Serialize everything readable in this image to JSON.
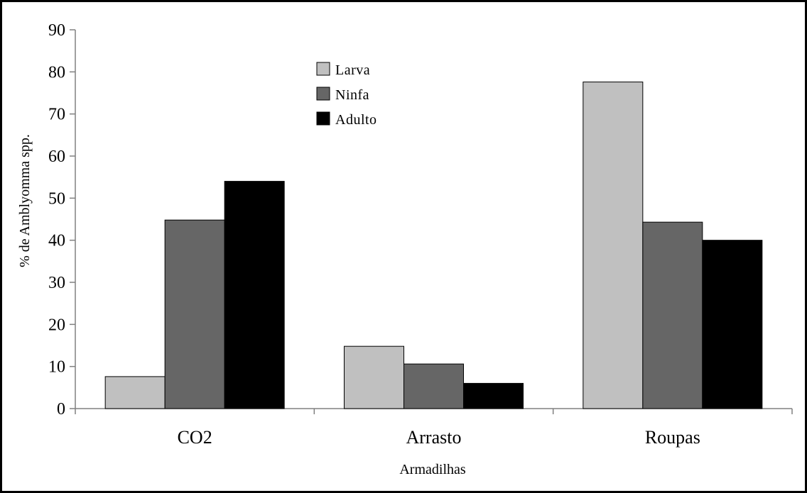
{
  "colors": {
    "larva": "#c0c0c0",
    "ninfa": "#666666",
    "adulto": "#000000",
    "frame": "#000000",
    "axis": "#808080"
  },
  "chart_data": {
    "type": "bar",
    "title": "",
    "xlabel": "Armadilhas",
    "ylabel": "% de Amblyomma spp.",
    "categories": [
      "CO2",
      "Arrasto",
      "Roupas"
    ],
    "series": [
      {
        "name": "Larva",
        "values": [
          7.6,
          14.8,
          77.6
        ]
      },
      {
        "name": "Ninfa",
        "values": [
          44.8,
          10.6,
          44.3
        ]
      },
      {
        "name": "Adulto",
        "values": [
          54.0,
          6.0,
          40.0
        ]
      }
    ],
    "ylim": [
      0,
      90
    ],
    "yticks": [
      "0",
      "10",
      "20",
      "30",
      "40",
      "50",
      "60",
      "70",
      "80",
      "90"
    ],
    "grid": false,
    "legend_position": "top-center"
  }
}
